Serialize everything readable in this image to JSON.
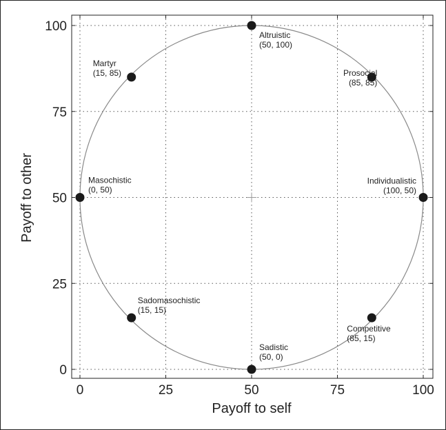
{
  "chart_data": {
    "type": "scatter",
    "title": "",
    "xlabel": "Payoff to self",
    "ylabel": "Payoff to other",
    "xlim": [
      0,
      100
    ],
    "ylim": [
      0,
      100
    ],
    "xticks": [
      "0",
      "25",
      "50",
      "75",
      "100"
    ],
    "yticks": [
      "0",
      "25",
      "50",
      "75",
      "100"
    ],
    "grid": true,
    "grid_style": "dotted",
    "circle": {
      "center": [
        50,
        50
      ],
      "radius": 50
    },
    "points": [
      {
        "name": "Altruistic",
        "coord": "(50, 100)",
        "x": 50,
        "y": 100
      },
      {
        "name": "Prosocial",
        "coord": "(85, 85)",
        "x": 85,
        "y": 85
      },
      {
        "name": "Individualistic",
        "coord": "(100, 50)",
        "x": 100,
        "y": 50
      },
      {
        "name": "Competitive",
        "coord": "(85, 15)",
        "x": 85,
        "y": 15
      },
      {
        "name": "Sadistic",
        "coord": "(50, 0)",
        "x": 50,
        "y": 0
      },
      {
        "name": "Sadomasochistic",
        "coord": "(15, 15)",
        "x": 15,
        "y": 15
      },
      {
        "name": "Masochistic",
        "coord": "(0, 50)",
        "x": 0,
        "y": 50
      },
      {
        "name": "Martyr",
        "coord": "(15, 85)",
        "x": 15,
        "y": 85
      }
    ],
    "colors": {
      "points": "#1a1a1a",
      "circle": "#888888",
      "grid": "#555555",
      "frame": "#222222"
    }
  }
}
